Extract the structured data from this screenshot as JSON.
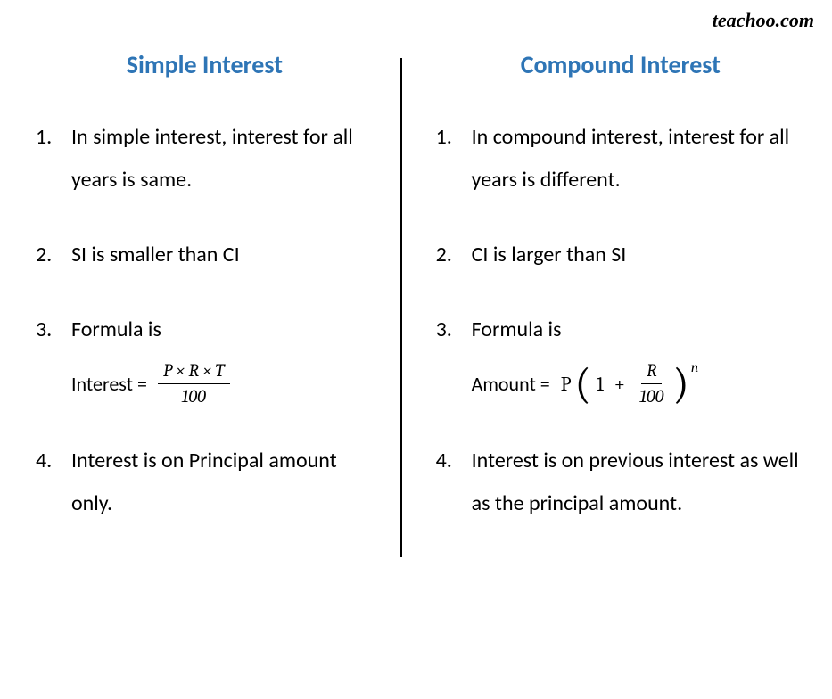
{
  "watermark": "teachoo.com",
  "colors": {
    "heading": "#2e75b6",
    "text": "#000000",
    "background": "#ffffff",
    "divider": "#000000"
  },
  "simple": {
    "heading": "Simple Interest",
    "items": [
      {
        "num": "1.",
        "text": "In simple interest, interest for all years is same."
      },
      {
        "num": "2.",
        "text": "SI is smaller than CI"
      },
      {
        "num": "3.",
        "text": "Formula is"
      },
      {
        "num": "4.",
        "text": "Interest is on Principal amount only."
      }
    ],
    "formula": {
      "label": "Interest =",
      "numerator": "P × R × T",
      "denominator": "100"
    }
  },
  "compound": {
    "heading": "Compound Interest",
    "items": [
      {
        "num": "1.",
        "text": "In compound interest, interest for all years is different."
      },
      {
        "num": "2.",
        "text": "CI is larger than SI"
      },
      {
        "num": "3.",
        "text": "Formula is"
      },
      {
        "num": "4.",
        "text": "Interest is on previous interest as well as the principal amount."
      }
    ],
    "formula": {
      "label": "Amount =",
      "principal": "P",
      "one": "1",
      "plus": "+",
      "frac_num": "R",
      "frac_den": "100",
      "exponent": "n"
    }
  }
}
